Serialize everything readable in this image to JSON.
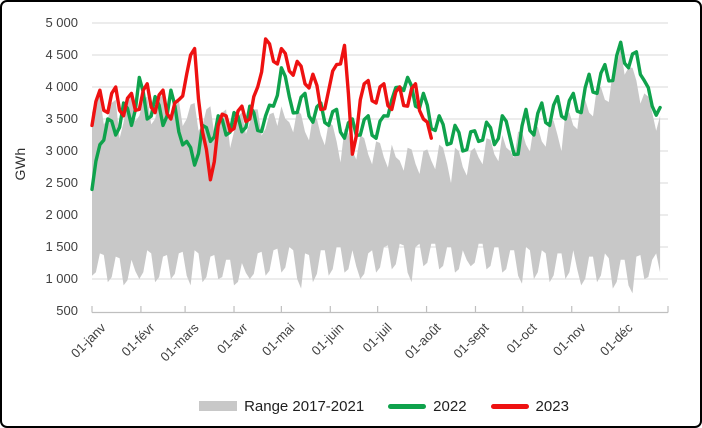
{
  "chart_data": {
    "type": "line",
    "title": "",
    "xlabel": "",
    "ylabel": "GWh",
    "ylim": [
      500,
      5000
    ],
    "grid": "horizontal",
    "legend_position": "bottom",
    "days_in_year": 365,
    "sample_step_days": 5,
    "y_ticks": {
      "values": [
        500,
        1000,
        1500,
        2000,
        2500,
        3000,
        3500,
        4000,
        4500,
        5000
      ],
      "labels": [
        "500",
        "1 000",
        "1 500",
        "2 000",
        "2 500",
        "3 000",
        "3 500",
        "4 000",
        "4 500",
        "5 000"
      ]
    },
    "x_ticks": {
      "labels": [
        "01-janv",
        "01-févr",
        "01-mars",
        "01-avr",
        "01-mai",
        "01-juin",
        "01-juil",
        "01-août",
        "01-sept",
        "01-oct",
        "01-nov",
        "01-déc"
      ],
      "day_positions": [
        0,
        31,
        59,
        90,
        120,
        151,
        181,
        212,
        243,
        273,
        304,
        334
      ]
    },
    "axis_colors": {
      "grid": "#D9D9D9",
      "axis": "#BFBFBF",
      "tick_text": "#3F3F3F"
    },
    "series": [
      {
        "name": "Range 2017-2021",
        "type": "band",
        "color": "#C8C8C8",
        "start_day": 0,
        "max_gwh": [
          3600,
          3850,
          3500,
          3800,
          3450,
          3900,
          3550,
          3850,
          3500,
          3900,
          3600,
          3800,
          3500,
          3750,
          3400,
          3700,
          3350,
          3650,
          3300,
          3600,
          3450,
          3650,
          3350,
          3600,
          3700,
          3450,
          3650,
          3300,
          3550,
          3250,
          3450,
          3150,
          3350,
          3000,
          3250,
          2950,
          3150,
          2900,
          3100,
          2850,
          3050,
          2800,
          3000,
          2850,
          3100,
          2800,
          3050,
          2750,
          3000,
          2900,
          3200,
          2950,
          3250,
          3000,
          3300,
          3100,
          3400,
          3150,
          3500,
          3250,
          3600,
          3400,
          3800,
          3600,
          4000,
          3800,
          4250,
          4600,
          4300,
          4100,
          3900,
          3600,
          3550
        ],
        "min_gwh": [
          1050,
          1400,
          950,
          1350,
          900,
          1300,
          1000,
          1450,
          950,
          1350,
          1000,
          1400,
          1050,
          1450,
          950,
          1350,
          1000,
          1300,
          900,
          1250,
          1000,
          1400,
          1050,
          1450,
          1100,
          1500,
          1000,
          1400,
          950,
          1450,
          1050,
          1500,
          1100,
          1450,
          1000,
          1400,
          1100,
          1500,
          1150,
          1550,
          1100,
          1500,
          1200,
          1550,
          1150,
          1500,
          1100,
          1450,
          1200,
          1550,
          1150,
          1500,
          1100,
          1450,
          1050,
          1500,
          1000,
          1450,
          950,
          1400,
          1000,
          1450,
          900,
          1350,
          950,
          1400,
          850,
          1300,
          900,
          1350,
          1000,
          1300,
          1100
        ]
      },
      {
        "name": "2022",
        "type": "line",
        "color": "#0FA24C",
        "start_day": 0,
        "values_gwh": [
          2400,
          3100,
          3500,
          3250,
          3750,
          3400,
          4150,
          3500,
          3850,
          3400,
          3950,
          3300,
          3150,
          2780,
          3400,
          3150,
          3550,
          3250,
          3600,
          3300,
          3700,
          3320,
          3550,
          3700,
          4300,
          3850,
          3600,
          3900,
          3450,
          3750,
          3400,
          3650,
          3200,
          3500,
          3250,
          3550,
          3200,
          3550,
          3800,
          4000,
          4150,
          3700,
          3900,
          3350,
          3550,
          3100,
          3400,
          3000,
          3300,
          3150,
          3450,
          3100,
          3550,
          3200,
          2950,
          3650,
          3250,
          3750,
          3400,
          3850,
          3500,
          3900,
          3600,
          4200,
          3900,
          4350,
          4100,
          4700,
          4300,
          4550,
          4100,
          3700,
          3680
        ]
      },
      {
        "name": "2023",
        "type": "line",
        "color": "#EE1111",
        "start_day": 0,
        "values_gwh": [
          3400,
          3950,
          3600,
          4000,
          3550,
          3900,
          3650,
          4050,
          3600,
          3950,
          3500,
          3800,
          4200,
          4600,
          3300,
          2550,
          3400,
          3550,
          3350,
          3700,
          3500,
          4000,
          4750,
          4400,
          4600,
          4250,
          4400,
          4050,
          4200,
          3650,
          3950,
          4350,
          4650,
          2950,
          3800,
          4100,
          3750,
          4050,
          3650,
          4000,
          3700,
          4050,
          3500,
          3200
        ]
      }
    ]
  }
}
